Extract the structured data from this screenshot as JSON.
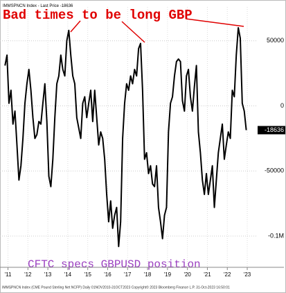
{
  "chart_data": {
    "type": "line",
    "title": "Bad times to be long GBP",
    "subtitle": "CFTC specs GBPUSD position",
    "footer": "IMMSPNCN Index (CME Pound Sterling Net NCFP)  Daily 01NOV2010-31OCT2023   Copyright© 2023 Bloomberg Finance L.P.   31-Oct-2023 16:50:01",
    "xlim": [
      2010.6,
      2023.45
    ],
    "xticks": [
      {
        "value": 2011,
        "label": "'11"
      },
      {
        "value": 2012,
        "label": "'12"
      },
      {
        "value": 2013,
        "label": "'13"
      },
      {
        "value": 2014,
        "label": "'14"
      },
      {
        "value": 2015,
        "label": "'15"
      },
      {
        "value": 2016,
        "label": "'16"
      },
      {
        "value": 2017,
        "label": "'17"
      },
      {
        "value": 2018,
        "label": "'18"
      },
      {
        "value": 2019,
        "label": "'19"
      },
      {
        "value": 2020,
        "label": "'20"
      },
      {
        "value": 2021,
        "label": "'21"
      },
      {
        "value": 2022,
        "label": "'22"
      },
      {
        "value": 2023,
        "label": "'23"
      }
    ],
    "ylim": [
      -124000,
      76000
    ],
    "yticks": [
      50000,
      0,
      -50000,
      {
        "value": -100000,
        "label": "-0.1M"
      }
    ],
    "grid": true,
    "x": [
      2010.85,
      2010.95,
      2011.05,
      2011.15,
      2011.25,
      2011.35,
      2011.45,
      2011.55,
      2011.65,
      2011.75,
      2011.85,
      2011.95,
      2012.05,
      2012.15,
      2012.25,
      2012.35,
      2012.45,
      2012.55,
      2012.65,
      2012.75,
      2012.85,
      2012.95,
      2013.05,
      2013.15,
      2013.25,
      2013.35,
      2013.45,
      2013.55,
      2013.65,
      2013.75,
      2013.85,
      2013.95,
      2014.05,
      2014.15,
      2014.25,
      2014.35,
      2014.45,
      2014.55,
      2014.65,
      2014.75,
      2014.85,
      2014.95,
      2015.05,
      2015.15,
      2015.25,
      2015.35,
      2015.45,
      2015.55,
      2015.65,
      2015.75,
      2015.85,
      2015.95,
      2016.05,
      2016.15,
      2016.25,
      2016.35,
      2016.45,
      2016.55,
      2016.65,
      2016.75,
      2016.85,
      2016.95,
      2017.05,
      2017.15,
      2017.25,
      2017.35,
      2017.45,
      2017.55,
      2017.65,
      2017.75,
      2017.85,
      2017.95,
      2018.05,
      2018.15,
      2018.25,
      2018.35,
      2018.45,
      2018.55,
      2018.65,
      2018.75,
      2018.85,
      2018.95,
      2019.05,
      2019.15,
      2019.25,
      2019.35,
      2019.45,
      2019.55,
      2019.65,
      2019.75,
      2019.85,
      2019.95,
      2020.05,
      2020.15,
      2020.25,
      2020.35,
      2020.45,
      2020.55,
      2020.65,
      2020.75,
      2020.85,
      2020.95,
      2021.05,
      2021.15,
      2021.25,
      2021.35,
      2021.45,
      2021.55,
      2021.65,
      2021.75,
      2021.85,
      2021.95,
      2022.05,
      2022.15,
      2022.25,
      2022.35,
      2022.45,
      2022.55,
      2022.65,
      2022.75,
      2022.85,
      2022.95
    ],
    "series": [
      {
        "name": "IMMSPNCN Index - Last Price",
        "color": "#000000",
        "values": [
          31000,
          39000,
          2000,
          12000,
          -14000,
          -4000,
          -30000,
          -57000,
          -46000,
          -25000,
          2000,
          17000,
          28000,
          12000,
          -9000,
          -25000,
          -22000,
          -12000,
          -14000,
          2000,
          17000,
          -12000,
          -54000,
          -62000,
          -41000,
          -9000,
          17000,
          23000,
          39000,
          28000,
          23000,
          50000,
          58000,
          39000,
          23000,
          17000,
          -9000,
          -17000,
          -25000,
          2000,
          7000,
          -9000,
          2000,
          12000,
          -12000,
          12000,
          -9000,
          -30000,
          -20000,
          -25000,
          -41000,
          -68000,
          -89000,
          -73000,
          -94000,
          -84000,
          -78000,
          -108000,
          -89000,
          -25000,
          2000,
          17000,
          12000,
          23000,
          17000,
          28000,
          23000,
          44000,
          48000,
          12000,
          -41000,
          -36000,
          -52000,
          -46000,
          -60000,
          -62000,
          -46000,
          -78000,
          -89000,
          -102000,
          -84000,
          -78000,
          -20000,
          2000,
          7000,
          23000,
          34000,
          36000,
          34000,
          4000,
          -4000,
          23000,
          28000,
          7000,
          -4000,
          15000,
          31000,
          -20000,
          -36000,
          -57000,
          -68000,
          -52000,
          -68000,
          -57000,
          -46000,
          -78000,
          -57000,
          -36000,
          -25000,
          -14000,
          -41000,
          -30000,
          -20000,
          -25000,
          12000,
          7000,
          39000,
          60000,
          52000,
          2000,
          -4000,
          -18636
        ]
      }
    ]
  }
}
